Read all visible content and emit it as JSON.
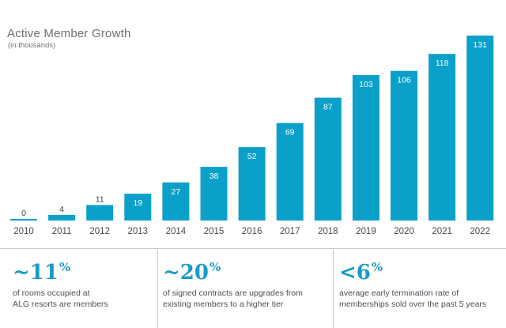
{
  "chart_data": {
    "type": "bar",
    "title": "Active Member Growth",
    "subtitle": "(in thousands)",
    "categories": [
      "2010",
      "2011",
      "2012",
      "2013",
      "2014",
      "2015",
      "2016",
      "2017",
      "2018",
      "2019",
      "2020",
      "2021",
      "2022"
    ],
    "values": [
      0,
      4,
      11,
      19,
      27,
      38,
      52,
      69,
      87,
      103,
      106,
      118,
      131
    ],
    "xlabel": "",
    "ylabel": "",
    "ylim": [
      0,
      131
    ],
    "grid": false,
    "bar_color": "#0aa0c9"
  },
  "stats": [
    {
      "symbol": "~",
      "number": "11",
      "unit": "%",
      "text": "of rooms occupied at\nALG resorts are members"
    },
    {
      "symbol": "~",
      "number": "20",
      "unit": "%",
      "text": "of signed contracts are upgrades from\nexisting members to a higher tier"
    },
    {
      "symbol": "<",
      "number": "6",
      "unit": "%",
      "text": "average early termination rate of\nmemberships sold over the past 5 years"
    }
  ],
  "colors": {
    "accent": "#1a9bc7",
    "bar": "#0aa0c9",
    "divider": "#c8ccd1"
  }
}
